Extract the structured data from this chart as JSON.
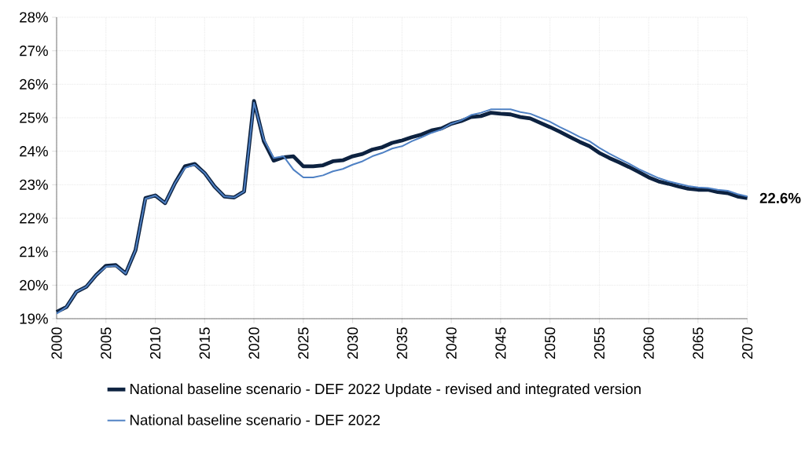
{
  "chart_data": {
    "type": "line",
    "x": [
      2000,
      2001,
      2002,
      2003,
      2004,
      2005,
      2006,
      2007,
      2008,
      2009,
      2010,
      2011,
      2012,
      2013,
      2014,
      2015,
      2016,
      2017,
      2018,
      2019,
      2020,
      2021,
      2022,
      2023,
      2024,
      2025,
      2026,
      2027,
      2028,
      2029,
      2030,
      2031,
      2032,
      2033,
      2034,
      2035,
      2036,
      2037,
      2038,
      2039,
      2040,
      2041,
      2042,
      2043,
      2044,
      2045,
      2046,
      2047,
      2048,
      2049,
      2050,
      2051,
      2052,
      2053,
      2054,
      2055,
      2056,
      2057,
      2058,
      2059,
      2060,
      2061,
      2062,
      2063,
      2064,
      2065,
      2066,
      2067,
      2068,
      2069,
      2070
    ],
    "series": [
      {
        "name": "National baseline scenario - DEF 2022 Update - revised and integrated version",
        "color": "#0d2240",
        "values": [
          19.2,
          19.35,
          19.8,
          19.95,
          20.3,
          20.58,
          20.6,
          20.35,
          21.05,
          22.6,
          22.68,
          22.45,
          23.05,
          23.55,
          23.62,
          23.35,
          22.95,
          22.65,
          22.62,
          22.8,
          25.5,
          24.3,
          23.72,
          23.82,
          23.85,
          23.55,
          23.55,
          23.58,
          23.7,
          23.73,
          23.85,
          23.92,
          24.05,
          24.12,
          24.25,
          24.32,
          24.42,
          24.5,
          24.62,
          24.68,
          24.82,
          24.9,
          25.02,
          25.05,
          25.15,
          25.12,
          25.1,
          25.02,
          24.98,
          24.85,
          24.72,
          24.58,
          24.43,
          24.28,
          24.15,
          23.95,
          23.8,
          23.67,
          23.53,
          23.38,
          23.22,
          23.1,
          23.03,
          22.95,
          22.88,
          22.85,
          22.85,
          22.78,
          22.75,
          22.65,
          22.6
        ]
      },
      {
        "name": "National baseline scenario - DEF 2022",
        "color": "#4f81c4",
        "values": [
          19.15,
          19.35,
          19.8,
          19.95,
          20.3,
          20.55,
          20.58,
          20.35,
          21.05,
          22.58,
          22.68,
          22.45,
          23.05,
          23.5,
          23.6,
          23.35,
          22.95,
          22.65,
          22.62,
          22.8,
          25.45,
          24.35,
          23.8,
          23.85,
          23.45,
          23.22,
          23.22,
          23.28,
          23.4,
          23.47,
          23.6,
          23.7,
          23.85,
          23.95,
          24.08,
          24.15,
          24.3,
          24.42,
          24.55,
          24.65,
          24.82,
          24.92,
          25.08,
          25.15,
          25.25,
          25.25,
          25.25,
          25.17,
          25.12,
          25.0,
          24.88,
          24.72,
          24.58,
          24.43,
          24.3,
          24.1,
          23.93,
          23.78,
          23.63,
          23.47,
          23.33,
          23.2,
          23.1,
          23.03,
          22.96,
          22.92,
          22.9,
          22.85,
          22.82,
          22.72,
          22.65
        ]
      }
    ],
    "xlim": [
      2000,
      2070
    ],
    "xticks": [
      2000,
      2005,
      2010,
      2015,
      2020,
      2025,
      2030,
      2035,
      2040,
      2045,
      2050,
      2055,
      2060,
      2065,
      2070
    ],
    "ylim": [
      19,
      28
    ],
    "yticks": [
      {
        "value": 19,
        "label": "19%"
      },
      {
        "value": 20,
        "label": "20%"
      },
      {
        "value": 21,
        "label": "21%"
      },
      {
        "value": 22,
        "label": "22%"
      },
      {
        "value": 23,
        "label": "23%"
      },
      {
        "value": 24,
        "label": "24%"
      },
      {
        "value": 25,
        "label": "25%"
      },
      {
        "value": 26,
        "label": "26%"
      },
      {
        "value": 27,
        "label": "27%"
      },
      {
        "value": 28,
        "label": "28%"
      }
    ],
    "annotations": [
      {
        "text": "22.6%",
        "x": 2070,
        "y": 22.6
      }
    ],
    "grid": true,
    "legend": "bottom",
    "marker": "none",
    "line_style": "solid"
  }
}
